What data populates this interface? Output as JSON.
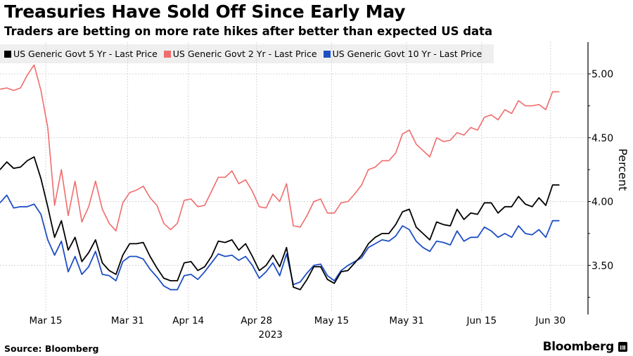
{
  "title": "Treasuries Have Sold Off Since Early May",
  "subtitle": "Traders are betting on more rate hikes after better than expected US data",
  "source": "Source: Bloomberg",
  "brand": "Bloomberg",
  "legend": [
    {
      "label": "US Generic Govt 5 Yr - Last Price",
      "color": "#000000"
    },
    {
      "label": "US Generic Govt 2 Yr - Last Price",
      "color": "#f06c6c"
    },
    {
      "label": "US Generic Govt 10 Yr - Last Price",
      "color": "#1f4fc4"
    }
  ],
  "chart_data": {
    "type": "line",
    "title": "Treasuries Have Sold Off Since Early May",
    "subtitle": "Traders are betting on more rate hikes after better than expected US data",
    "xlabel": "2023",
    "ylabel": "Percent",
    "ylim": [
      3.15,
      5.25
    ],
    "yticks": [
      3.5,
      4.0,
      4.5,
      5.0
    ],
    "ytick_labels": [
      "3.50",
      "4.00",
      "4.50",
      "5.00"
    ],
    "xtick_labels": [
      "Mar 15",
      "Mar 31",
      "Apr 14",
      "Apr 28",
      "May 15",
      "May 31",
      "Jun 15",
      "Jun 30"
    ],
    "xtick_index": [
      6.7,
      18.7,
      27.6,
      37.6,
      48.6,
      59.6,
      70.6,
      80.7
    ],
    "x_year_label": "2023",
    "grid": true,
    "legend_position": "top-left",
    "axis_side": "right",
    "series": [
      {
        "name": "US Generic Govt 5 Yr - Last Price",
        "color": "#000000",
        "values": [
          4.25,
          4.31,
          4.26,
          4.27,
          4.32,
          4.35,
          4.18,
          3.96,
          3.72,
          3.85,
          3.62,
          3.72,
          3.53,
          3.6,
          3.7,
          3.52,
          3.46,
          3.43,
          3.58,
          3.67,
          3.67,
          3.68,
          3.57,
          3.48,
          3.4,
          3.38,
          3.38,
          3.52,
          3.53,
          3.46,
          3.49,
          3.57,
          3.69,
          3.68,
          3.7,
          3.62,
          3.67,
          3.57,
          3.46,
          3.5,
          3.58,
          3.49,
          3.64,
          3.33,
          3.31,
          3.39,
          3.49,
          3.49,
          3.39,
          3.36,
          3.45,
          3.46,
          3.52,
          3.58,
          3.67,
          3.72,
          3.75,
          3.75,
          3.82,
          3.92,
          3.94,
          3.8,
          3.75,
          3.7,
          3.84,
          3.82,
          3.81,
          3.94,
          3.86,
          3.91,
          3.9,
          3.99,
          3.99,
          3.91,
          3.96,
          3.96,
          4.04,
          3.98,
          3.96,
          4.03,
          3.97,
          4.13,
          4.13
        ]
      },
      {
        "name": "US Generic Govt 2 Yr - Last Price",
        "color": "#f06c6c",
        "values": [
          4.88,
          4.89,
          4.87,
          4.89,
          4.99,
          5.07,
          4.87,
          4.58,
          3.97,
          4.25,
          3.89,
          4.16,
          3.84,
          3.96,
          4.16,
          3.94,
          3.83,
          3.77,
          3.99,
          4.07,
          4.09,
          4.12,
          4.03,
          3.97,
          3.83,
          3.78,
          3.83,
          4.01,
          4.02,
          3.96,
          3.97,
          4.08,
          4.19,
          4.19,
          4.24,
          4.14,
          4.17,
          4.08,
          3.96,
          3.95,
          4.06,
          4.0,
          4.14,
          3.81,
          3.8,
          3.89,
          4.0,
          4.02,
          3.91,
          3.91,
          3.99,
          4.0,
          4.06,
          4.13,
          4.25,
          4.27,
          4.32,
          4.32,
          4.38,
          4.53,
          4.56,
          4.45,
          4.4,
          4.35,
          4.5,
          4.47,
          4.48,
          4.54,
          4.52,
          4.58,
          4.56,
          4.66,
          4.68,
          4.64,
          4.72,
          4.69,
          4.79,
          4.75,
          4.75,
          4.76,
          4.72,
          4.86,
          4.86
        ]
      },
      {
        "name": "US Generic Govt 10 Yr - Last Price",
        "color": "#1f4fc4",
        "values": [
          3.99,
          4.05,
          3.95,
          3.96,
          3.96,
          3.98,
          3.9,
          3.7,
          3.58,
          3.69,
          3.45,
          3.57,
          3.43,
          3.49,
          3.61,
          3.43,
          3.42,
          3.38,
          3.53,
          3.57,
          3.57,
          3.55,
          3.47,
          3.41,
          3.34,
          3.31,
          3.31,
          3.42,
          3.43,
          3.39,
          3.45,
          3.52,
          3.59,
          3.57,
          3.58,
          3.54,
          3.57,
          3.5,
          3.4,
          3.45,
          3.52,
          3.42,
          3.59,
          3.35,
          3.37,
          3.44,
          3.5,
          3.51,
          3.42,
          3.38,
          3.46,
          3.5,
          3.53,
          3.56,
          3.64,
          3.67,
          3.7,
          3.69,
          3.73,
          3.81,
          3.78,
          3.69,
          3.64,
          3.61,
          3.69,
          3.68,
          3.66,
          3.77,
          3.69,
          3.72,
          3.72,
          3.8,
          3.77,
          3.72,
          3.75,
          3.72,
          3.81,
          3.75,
          3.74,
          3.78,
          3.72,
          3.85,
          3.85
        ]
      }
    ]
  }
}
